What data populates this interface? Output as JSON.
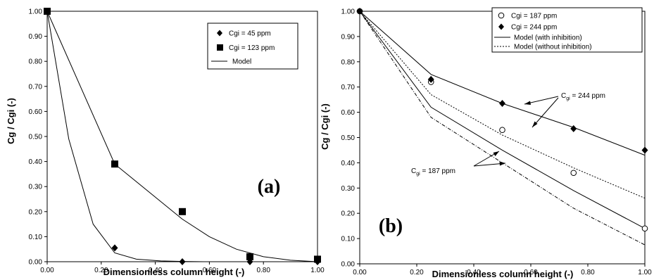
{
  "chart_data": [
    {
      "type": "scatter",
      "panel_label": "(a)",
      "xlabel": "Dimensionless column height (-)",
      "ylabel": "Cg / Cgi (-)",
      "xlim": [
        0,
        1
      ],
      "ylim": [
        0,
        1
      ],
      "xticks": [
        "0.00",
        "0.20",
        "0.40",
        "0.60",
        "0.80",
        "1.00"
      ],
      "yticks": [
        "0.00",
        "0.10",
        "0.20",
        "0.30",
        "0.40",
        "0.50",
        "0.60",
        "0.70",
        "0.80",
        "0.90",
        "1.00"
      ],
      "grid": false,
      "legend_position": "top-right",
      "series": [
        {
          "name": "Cgi = 45 ppm",
          "kind": "markers",
          "marker": "diamond",
          "x": [
            0,
            0.25,
            0.5,
            0.75,
            1.0
          ],
          "y": [
            1.0,
            0.055,
            0.0,
            0.0,
            0.0
          ]
        },
        {
          "name": "Cgi = 123 ppm",
          "kind": "markers",
          "marker": "square",
          "x": [
            0,
            0.25,
            0.5,
            0.75,
            1.0
          ],
          "y": [
            1.0,
            0.39,
            0.2,
            0.02,
            0.01
          ]
        },
        {
          "name": "Model",
          "kind": "line",
          "style": "solid",
          "x": [
            0,
            0.08,
            0.17,
            0.25,
            0.33,
            0.42,
            0.5,
            0.58,
            0.67,
            0.75,
            0.83,
            0.92,
            1.0
          ],
          "y": [
            1.0,
            0.49,
            0.15,
            0.035,
            0.01,
            0.003,
            0.001,
            0.0,
            0.0,
            0.0,
            0.0,
            0.0,
            0.0
          ]
        },
        {
          "kind": "line",
          "style": "solid",
          "x": [
            0,
            0.25,
            0.5,
            0.6,
            0.7,
            0.8,
            0.9,
            1.0
          ],
          "y": [
            1.0,
            0.39,
            0.17,
            0.1,
            0.05,
            0.02,
            0.006,
            0.0
          ]
        }
      ]
    },
    {
      "type": "scatter",
      "panel_label": "(b)",
      "xlabel": "Dimensionless column height (-)",
      "ylabel": "Cg / Cgi (-)",
      "xlim": [
        0,
        1
      ],
      "ylim": [
        0,
        1
      ],
      "xticks": [
        "0.00",
        "0.20",
        "0.40",
        "0.60",
        "0.80",
        "1.00"
      ],
      "yticks": [
        "0.00",
        "0.10",
        "0.20",
        "0.30",
        "0.40",
        "0.50",
        "0.60",
        "0.70",
        "0.80",
        "0.90",
        "1.00"
      ],
      "grid": false,
      "legend_position": "top-right",
      "annotations": [
        {
          "text_main": "C",
          "text_sub": "gi",
          "text_rest": " = 244 ppm"
        },
        {
          "text_main": "C",
          "text_sub": "gi",
          "text_rest": " = 187 ppm"
        }
      ],
      "series": [
        {
          "name": "Cgi = 187 ppm",
          "kind": "markers",
          "marker": "circle-open",
          "x": [
            0,
            0.25,
            0.5,
            0.75,
            1.0
          ],
          "y": [
            1.0,
            0.72,
            0.53,
            0.36,
            0.14
          ]
        },
        {
          "name": "Cgi = 244 ppm",
          "kind": "markers",
          "marker": "diamond",
          "x": [
            0,
            0.25,
            0.5,
            0.75,
            1.0
          ],
          "y": [
            1.0,
            0.73,
            0.635,
            0.535,
            0.45
          ]
        },
        {
          "name": "Model (with inhibition)",
          "kind": "line",
          "style": "solid",
          "x": [
            0,
            0.25,
            0.5,
            0.75,
            1.0
          ],
          "y": [
            1.0,
            0.75,
            0.635,
            0.54,
            0.43
          ]
        },
        {
          "name": "Model (without inhibition)",
          "kind": "line",
          "style": "dotted",
          "x": [
            0,
            0.25,
            0.5,
            0.75,
            1.0
          ],
          "y": [
            1.0,
            0.67,
            0.51,
            0.38,
            0.26
          ]
        },
        {
          "kind": "line",
          "style": "solid",
          "x": [
            0,
            0.25,
            0.5,
            0.75,
            1.0
          ],
          "y": [
            1.0,
            0.62,
            0.45,
            0.29,
            0.14
          ]
        },
        {
          "kind": "line",
          "style": "dashdot",
          "x": [
            0,
            0.25,
            0.5,
            0.75,
            1.0
          ],
          "y": [
            1.0,
            0.58,
            0.4,
            0.22,
            0.075
          ]
        }
      ]
    }
  ]
}
